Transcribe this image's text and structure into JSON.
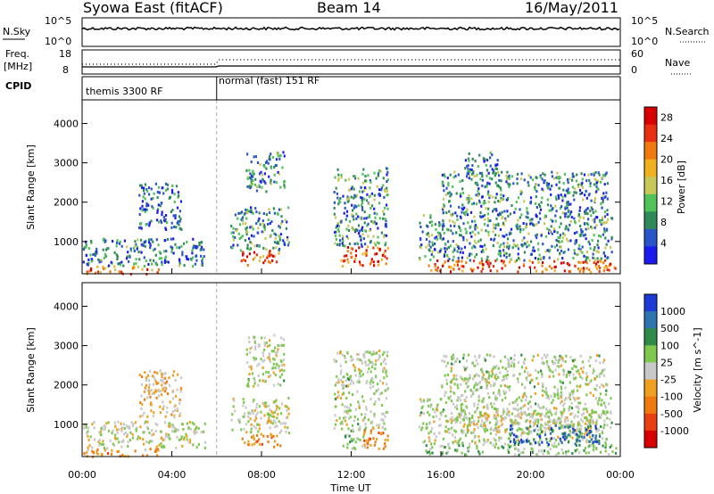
{
  "header": {
    "station": "Syowa East (fitACF)",
    "beam": "Beam 14",
    "date": "16/May/2011"
  },
  "status_panels": {
    "nsky": {
      "label": "N.Sky",
      "tick_top": "10^5",
      "tick_bottom": "10^0"
    },
    "nsearch": {
      "label": "N.Search",
      "tick_top": "10^5",
      "tick_bottom": "10^0"
    },
    "freq": {
      "label_line1": "Freq.",
      "label_line2": "[MHz]",
      "tick_top": "18",
      "tick_bottom": "8"
    },
    "nave": {
      "label": "Nave",
      "tick_top": "60",
      "tick_bottom": "0"
    },
    "cpid": {
      "label": "CPID",
      "modes": [
        "themis 3300 RF",
        "normal (fast) 151 RF"
      ],
      "mode_change_hour": 6.0
    }
  },
  "time_axis": {
    "label": "Time UT",
    "ticks": [
      "00:00",
      "04:00",
      "08:00",
      "12:00",
      "16:00",
      "20:00",
      "00:00"
    ],
    "range_hours": [
      0,
      24
    ]
  },
  "chart_data": [
    {
      "type": "heatmap",
      "name": "power",
      "ylabel": "Slant Range [km]",
      "y_ticks": [
        "1000",
        "2000",
        "3000",
        "4000"
      ],
      "ylim": [
        180,
        4600
      ],
      "colorbar": {
        "label": "Power [dB]",
        "ticks": [
          "4",
          "8",
          "12",
          "16",
          "20",
          "24",
          "28"
        ],
        "range": [
          0,
          30
        ],
        "colors": [
          "#1b1bf0",
          "#2a55c8",
          "#2f8a5a",
          "#4fc25a",
          "#c8c858",
          "#f0b020",
          "#f07a10",
          "#e83010",
          "#d80000"
        ]
      },
      "regions": [
        {
          "t": [
            0.0,
            3.4
          ],
          "r": [
            200,
            400
          ],
          "level": 22
        },
        {
          "t": [
            0.0,
            5.5
          ],
          "r": [
            400,
            1100
          ],
          "level": 7
        },
        {
          "t": [
            2.5,
            4.4
          ],
          "r": [
            1300,
            2500
          ],
          "level": 6
        },
        {
          "t": [
            7.0,
            8.8
          ],
          "r": [
            430,
            800
          ],
          "level": 22
        },
        {
          "t": [
            6.6,
            9.2
          ],
          "r": [
            800,
            1900
          ],
          "level": 9
        },
        {
          "t": [
            7.3,
            9.0
          ],
          "r": [
            2300,
            3300
          ],
          "level": 8
        },
        {
          "t": [
            11.5,
            13.6
          ],
          "r": [
            400,
            900
          ],
          "level": 24
        },
        {
          "t": [
            11.2,
            13.6
          ],
          "r": [
            900,
            2900
          ],
          "level": 8
        },
        {
          "t": [
            15.3,
            23.8
          ],
          "r": [
            250,
            550
          ],
          "level": 24
        },
        {
          "t": [
            15.0,
            23.6
          ],
          "r": [
            550,
            1700
          ],
          "level": 9
        },
        {
          "t": [
            16.0,
            23.4
          ],
          "r": [
            1700,
            2800
          ],
          "level": 8
        },
        {
          "t": [
            17.0,
            18.5
          ],
          "r": [
            2800,
            3300
          ],
          "level": 6
        }
      ]
    },
    {
      "type": "heatmap",
      "name": "velocity",
      "ylabel": "Slant Range [km]",
      "y_ticks": [
        "1000",
        "2000",
        "3000",
        "4000"
      ],
      "ylim": [
        180,
        4600
      ],
      "colorbar": {
        "label": "Velocity [m s^-1]",
        "ticks": [
          "1000",
          "500",
          "100",
          "25",
          "-25",
          "-100",
          "-500",
          "-1000"
        ],
        "range": [
          -1000,
          1000
        ],
        "colors": [
          "#1e3ad6",
          "#2f73b0",
          "#2f8a4a",
          "#7ec850",
          "#c8c8c8",
          "#f0a020",
          "#f07a10",
          "#e84010",
          "#d80000"
        ]
      },
      "regions": [
        {
          "t": [
            0.0,
            3.4
          ],
          "r": [
            200,
            420
          ],
          "level": -300
        },
        {
          "t": [
            0.0,
            5.5
          ],
          "r": [
            420,
            1100
          ],
          "level": 60
        },
        {
          "t": [
            2.5,
            4.4
          ],
          "r": [
            1200,
            2400
          ],
          "level": -150
        },
        {
          "t": [
            7.0,
            8.8
          ],
          "r": [
            450,
            800
          ],
          "level": -400
        },
        {
          "t": [
            6.6,
            9.2
          ],
          "r": [
            800,
            1700
          ],
          "level": 0
        },
        {
          "t": [
            7.3,
            9.0
          ],
          "r": [
            2000,
            3300
          ],
          "level": 80
        },
        {
          "t": [
            11.5,
            12.6
          ],
          "r": [
            400,
            900
          ],
          "level": 200
        },
        {
          "t": [
            12.4,
            13.6
          ],
          "r": [
            400,
            900
          ],
          "level": -400
        },
        {
          "t": [
            11.2,
            13.6
          ],
          "r": [
            900,
            2900
          ],
          "level": 80
        },
        {
          "t": [
            15.3,
            23.8
          ],
          "r": [
            250,
            500
          ],
          "level": 250
        },
        {
          "t": [
            16.5,
            23.0
          ],
          "r": [
            800,
            1350
          ],
          "level": 0
        },
        {
          "t": [
            15.0,
            23.6
          ],
          "r": [
            500,
            1700
          ],
          "level": 80
        },
        {
          "t": [
            16.0,
            23.4
          ],
          "r": [
            1700,
            2800
          ],
          "level": 90
        },
        {
          "t": [
            19.0,
            23.2
          ],
          "r": [
            500,
            1000
          ],
          "level": 700
        }
      ]
    }
  ]
}
